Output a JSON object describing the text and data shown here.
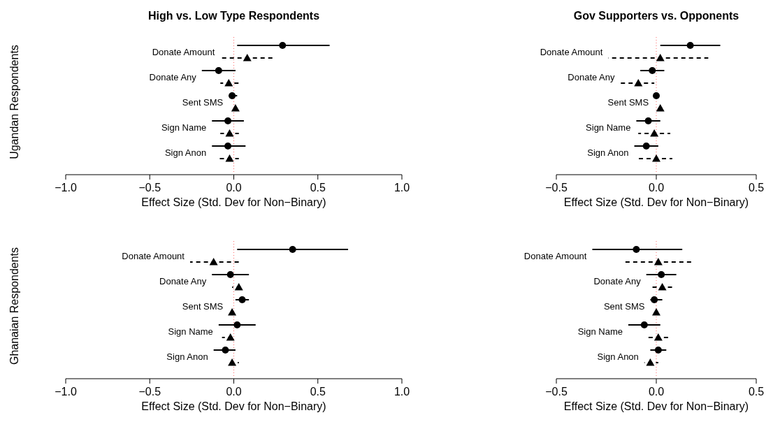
{
  "chart_data": [
    {
      "type": "scatter",
      "orientation": "horizontal",
      "title": "High vs. Low Type Respondents",
      "ylabel": "Ugandan Respondents",
      "xlabel": "Effect Size (Std. Dev for Non−Binary)",
      "categories": [
        "Donate Amount",
        "Donate Any",
        "Sent SMS",
        "Sign Name",
        "Sign Anon"
      ],
      "xlim": [
        -1,
        1
      ],
      "xticks": [
        {
          "value": -1,
          "label": "−1.0"
        },
        {
          "value": -0.5,
          "label": "−0.5"
        },
        {
          "value": 0,
          "label": "0.0"
        },
        {
          "value": 0.5,
          "label": "0.5"
        },
        {
          "value": 1,
          "label": "1.0"
        }
      ],
      "ref_lines": [
        {
          "axis": "x",
          "value": 0,
          "color": "#ff6666",
          "line_style": "dotted"
        }
      ],
      "series": [
        {
          "color": "#000000",
          "marker": "circle",
          "line_style": "solid",
          "values": [
            0.29,
            -0.09,
            -0.01,
            -0.035,
            -0.035
          ],
          "errors": [
            [
              0.02,
              0.57
            ],
            [
              -0.19,
              0.01
            ],
            [
              -0.03,
              0.02
            ],
            [
              -0.13,
              0.06
            ],
            [
              -0.13,
              0.07
            ]
          ]
        },
        {
          "color": "#000000",
          "marker": "triangle",
          "line_style": "dashed",
          "values": [
            0.08,
            -0.03,
            0.01,
            -0.025,
            -0.025
          ],
          "errors": [
            [
              -0.08,
              0.23
            ],
            [
              -0.08,
              0.03
            ],
            [
              0,
              0.02
            ],
            [
              -0.08,
              0.03
            ],
            [
              -0.09,
              0.03
            ]
          ]
        }
      ]
    },
    {
      "type": "scatter",
      "orientation": "horizontal",
      "title": "Gov Supporters vs. Opponents",
      "xlabel": "Effect Size (Std. Dev for Non−Binary)",
      "categories": [
        "Donate Amount",
        "Donate Any",
        "Sent SMS",
        "Sign Name",
        "Sign Anon"
      ],
      "xlim": [
        -0.5,
        0.5
      ],
      "xticks": [
        {
          "value": -0.5,
          "label": "−0.5"
        },
        {
          "value": 0,
          "label": "0.0"
        },
        {
          "value": 0.5,
          "label": "0.5"
        }
      ],
      "ref_lines": [
        {
          "axis": "x",
          "value": 0,
          "color": "#ff6666",
          "line_style": "dotted"
        }
      ],
      "series": [
        {
          "color": "#000000",
          "marker": "circle",
          "line_style": "solid",
          "values": [
            0.17,
            -0.02,
            0,
            -0.04,
            -0.05
          ],
          "errors": [
            [
              0.02,
              0.32
            ],
            [
              -0.08,
              0.04
            ],
            [
              -0.01,
              0.01
            ],
            [
              -0.1,
              0.02
            ],
            [
              -0.11,
              0.01
            ]
          ]
        },
        {
          "color": "#000000",
          "marker": "triangle",
          "line_style": "dashed",
          "values": [
            0.02,
            -0.09,
            0.02,
            -0.01,
            0
          ],
          "errors": [
            [
              -0.24,
              0.26
            ],
            [
              -0.18,
              -0.01
            ],
            [
              0.01,
              0.04
            ],
            [
              -0.09,
              0.07
            ],
            [
              -0.09,
              0.08
            ]
          ]
        }
      ]
    },
    {
      "type": "scatter",
      "orientation": "horizontal",
      "ylabel": "Ghanaian Respondents",
      "xlabel": "Effect Size (Std. Dev for Non−Binary)",
      "categories": [
        "Donate Amount",
        "Donate Any",
        "Sent SMS",
        "Sign Name",
        "Sign Anon"
      ],
      "xlim": [
        -1,
        1
      ],
      "xticks": [
        {
          "value": -1,
          "label": "−1.0"
        },
        {
          "value": -0.5,
          "label": "−0.5"
        },
        {
          "value": 0,
          "label": "0.0"
        },
        {
          "value": 0.5,
          "label": "0.5"
        },
        {
          "value": 1,
          "label": "1.0"
        }
      ],
      "ref_lines": [
        {
          "axis": "x",
          "value": 0,
          "color": "#ff6666",
          "line_style": "dotted"
        }
      ],
      "series": [
        {
          "color": "#000000",
          "marker": "circle",
          "line_style": "solid",
          "values": [
            0.35,
            -0.02,
            0.05,
            0.02,
            -0.05
          ],
          "errors": [
            [
              0.02,
              0.68
            ],
            [
              -0.13,
              0.09
            ],
            [
              0.01,
              0.09
            ],
            [
              -0.09,
              0.13
            ],
            [
              -0.12,
              0.01
            ]
          ]
        },
        {
          "color": "#000000",
          "marker": "triangle",
          "line_style": "dashed",
          "values": [
            -0.12,
            0.03,
            -0.01,
            -0.02,
            -0.01
          ],
          "errors": [
            [
              -0.26,
              0.03
            ],
            [
              -0.01,
              0.06
            ],
            [
              -0.03,
              0.01
            ],
            [
              -0.07,
              0
            ],
            [
              -0.03,
              0.03
            ]
          ]
        }
      ]
    },
    {
      "type": "scatter",
      "orientation": "horizontal",
      "xlabel": "Effect Size (Std. Dev for Non−Binary)",
      "categories": [
        "Donate Amount",
        "Donate Any",
        "Sent SMS",
        "Sign Name",
        "Sign Anon"
      ],
      "xlim": [
        -0.5,
        0.5
      ],
      "xticks": [
        {
          "value": -0.5,
          "label": "−0.5"
        },
        {
          "value": 0,
          "label": "0.0"
        },
        {
          "value": 0.5,
          "label": "0.5"
        }
      ],
      "ref_lines": [
        {
          "axis": "x",
          "value": 0,
          "color": "#ff6666",
          "line_style": "dotted"
        }
      ],
      "series": [
        {
          "color": "#000000",
          "marker": "circle",
          "line_style": "solid",
          "values": [
            -0.1,
            0.025,
            -0.01,
            -0.06,
            0.01
          ],
          "errors": [
            [
              -0.32,
              0.13
            ],
            [
              -0.05,
              0.1
            ],
            [
              -0.03,
              0.03
            ],
            [
              -0.14,
              0.02
            ],
            [
              -0.03,
              0.05
            ]
          ]
        },
        {
          "color": "#000000",
          "marker": "triangle",
          "line_style": "dashed",
          "values": [
            0.01,
            0.03,
            0,
            0.01,
            -0.03
          ],
          "errors": [
            [
              -0.16,
              0.18
            ],
            [
              -0.03,
              0.08
            ],
            [
              -0.02,
              0.02
            ],
            [
              -0.05,
              0.06
            ],
            [
              -0.06,
              0.01
            ]
          ]
        }
      ]
    }
  ]
}
